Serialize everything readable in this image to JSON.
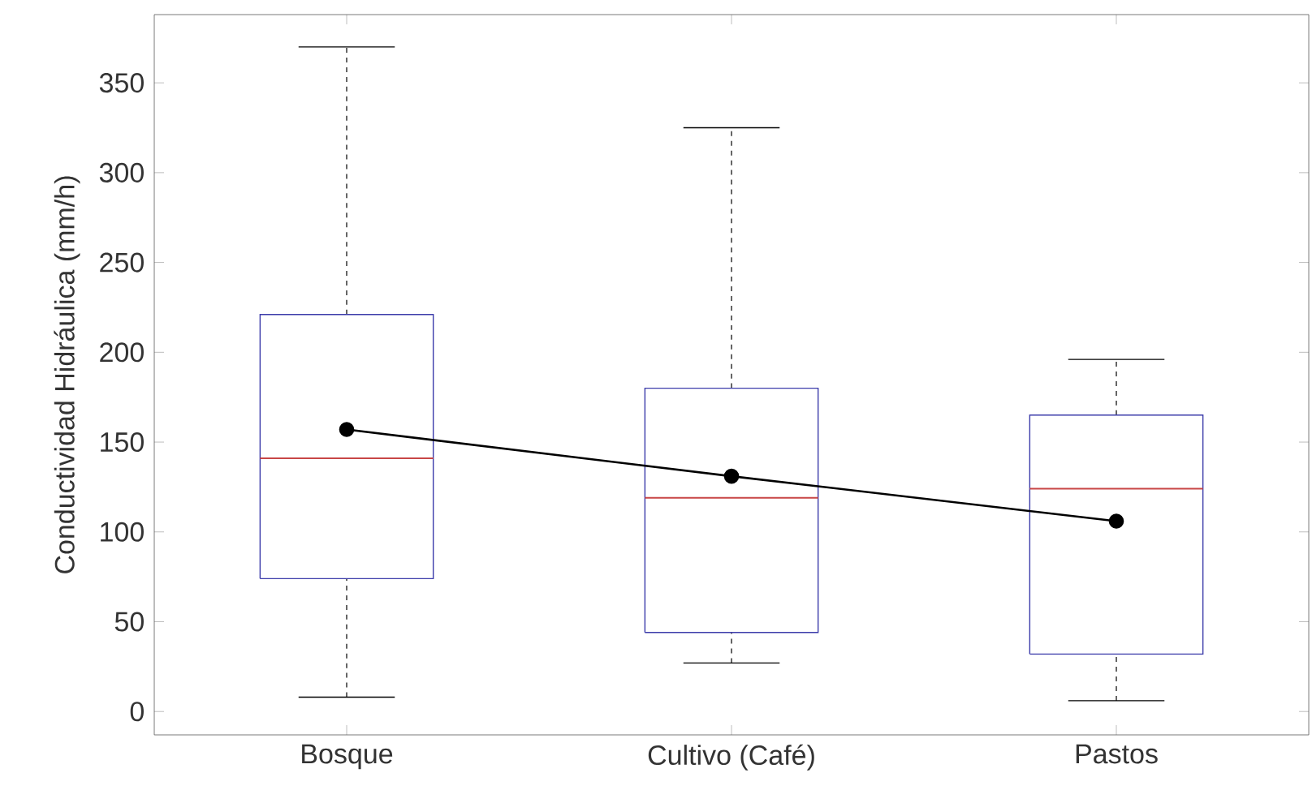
{
  "chart_data": {
    "type": "box",
    "ylabel": "Conductividad Hidráulica (mm/h)",
    "categories": [
      "Bosque",
      "Cultivo (Café)",
      "Pastos"
    ],
    "ylim": [
      -13,
      388
    ],
    "yticks": [
      0,
      50,
      100,
      150,
      200,
      250,
      300,
      350
    ],
    "grid": false,
    "boxes": [
      {
        "low": 8,
        "q1": 74,
        "median": 141,
        "q3": 221,
        "high": 370
      },
      {
        "low": 27,
        "q1": 44,
        "median": 119,
        "q3": 180,
        "high": 325
      },
      {
        "low": 6,
        "q1": 32,
        "median": 124,
        "q3": 165,
        "high": 196
      }
    ],
    "series": [
      {
        "type": "line",
        "x": [
          "Bosque",
          "Cultivo (Café)",
          "Pastos"
        ],
        "values": [
          157,
          131,
          106
        ],
        "color": "#000000",
        "marker": "circle",
        "line_style": "solid"
      }
    ]
  }
}
